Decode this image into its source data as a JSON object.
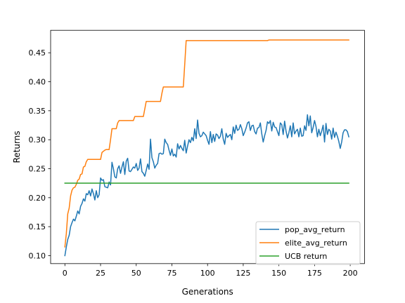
{
  "chart_data": {
    "type": "line",
    "title": "",
    "xlabel": "Generations",
    "ylabel": "Returns",
    "xlim": [
      -10,
      210
    ],
    "ylim": [
      0.08625,
      0.48875
    ],
    "xticks": [
      0,
      25,
      50,
      75,
      100,
      125,
      150,
      175,
      200
    ],
    "yticks": [
      0.1,
      0.15,
      0.2,
      0.25,
      0.3,
      0.35,
      0.4,
      0.45
    ],
    "ytick_labels": [
      "0.10",
      "0.15",
      "0.20",
      "0.25",
      "0.30",
      "0.35",
      "0.40",
      "0.45"
    ],
    "grid": false,
    "legend_position": "lower-right",
    "series": [
      {
        "name": "pop_avg_return",
        "color": "#1f77b4",
        "points": [
          [
            0,
            0.1
          ],
          [
            1,
            0.115
          ],
          [
            2,
            0.128
          ],
          [
            3,
            0.135
          ],
          [
            4,
            0.15
          ],
          [
            5,
            0.157
          ],
          [
            6,
            0.163
          ],
          [
            7,
            0.16
          ],
          [
            8,
            0.168
          ],
          [
            9,
            0.177
          ],
          [
            10,
            0.172
          ],
          [
            11,
            0.185
          ],
          [
            12,
            0.19
          ],
          [
            13,
            0.198
          ],
          [
            14,
            0.194
          ],
          [
            15,
            0.207
          ],
          [
            16,
            0.205
          ],
          [
            17,
            0.212
          ],
          [
            18,
            0.203
          ],
          [
            19,
            0.215
          ],
          [
            20,
            0.207
          ],
          [
            21,
            0.196
          ],
          [
            22,
            0.212
          ],
          [
            23,
            0.2
          ],
          [
            24,
            0.205
          ],
          [
            25,
            0.234
          ],
          [
            26,
            0.23
          ],
          [
            27,
            0.231
          ],
          [
            28,
            0.219
          ],
          [
            29,
            0.218
          ],
          [
            30,
            0.217
          ],
          [
            31,
            0.227
          ],
          [
            32,
            0.222
          ],
          [
            33,
            0.261
          ],
          [
            34,
            0.25
          ],
          [
            35,
            0.236
          ],
          [
            36,
            0.234
          ],
          [
            37,
            0.25
          ],
          [
            38,
            0.255
          ],
          [
            39,
            0.242
          ],
          [
            40,
            0.253
          ],
          [
            41,
            0.262
          ],
          [
            42,
            0.24
          ],
          [
            43,
            0.263
          ],
          [
            44,
            0.268
          ],
          [
            45,
            0.246
          ],
          [
            46,
            0.245
          ],
          [
            47,
            0.249
          ],
          [
            48,
            0.253
          ],
          [
            49,
            0.251
          ],
          [
            50,
            0.259
          ],
          [
            51,
            0.247
          ],
          [
            52,
            0.251
          ],
          [
            53,
            0.267
          ],
          [
            54,
            0.245
          ],
          [
            55,
            0.242
          ],
          [
            56,
            0.237
          ],
          [
            57,
            0.247
          ],
          [
            58,
            0.258
          ],
          [
            59,
            0.249
          ],
          [
            60,
            0.301
          ],
          [
            61,
            0.269
          ],
          [
            62,
            0.262
          ],
          [
            63,
            0.251
          ],
          [
            64,
            0.256
          ],
          [
            65,
            0.259
          ],
          [
            66,
            0.276
          ],
          [
            67,
            0.277
          ],
          [
            68,
            0.275
          ],
          [
            69,
            0.276
          ],
          [
            70,
            0.301
          ],
          [
            71,
            0.295
          ],
          [
            72,
            0.292
          ],
          [
            73,
            0.282
          ],
          [
            74,
            0.273
          ],
          [
            75,
            0.284
          ],
          [
            76,
            0.272
          ],
          [
            77,
            0.275
          ],
          [
            78,
            0.27
          ],
          [
            79,
            0.293
          ],
          [
            80,
            0.284
          ],
          [
            81,
            0.29
          ],
          [
            82,
            0.285
          ],
          [
            83,
            0.281
          ],
          [
            84,
            0.299
          ],
          [
            85,
            0.277
          ],
          [
            86,
            0.289
          ],
          [
            87,
            0.3
          ],
          [
            88,
            0.295
          ],
          [
            89,
            0.304
          ],
          [
            90,
            0.298
          ],
          [
            91,
            0.319
          ],
          [
            92,
            0.302
          ],
          [
            93,
            0.334
          ],
          [
            94,
            0.311
          ],
          [
            95,
            0.305
          ],
          [
            96,
            0.307
          ],
          [
            97,
            0.313
          ],
          [
            98,
            0.31
          ],
          [
            99,
            0.307
          ],
          [
            100,
            0.299
          ],
          [
            101,
            0.292
          ],
          [
            102,
            0.314
          ],
          [
            103,
            0.295
          ],
          [
            104,
            0.309
          ],
          [
            105,
            0.297
          ],
          [
            106,
            0.31
          ],
          [
            107,
            0.308
          ],
          [
            108,
            0.302
          ],
          [
            109,
            0.306
          ],
          [
            110,
            0.319
          ],
          [
            111,
            0.301
          ],
          [
            112,
            0.292
          ],
          [
            113,
            0.311
          ],
          [
            114,
            0.304
          ],
          [
            115,
            0.307
          ],
          [
            116,
            0.309
          ],
          [
            117,
            0.3
          ],
          [
            118,
            0.322
          ],
          [
            119,
            0.311
          ],
          [
            120,
            0.325
          ],
          [
            121,
            0.316
          ],
          [
            122,
            0.318
          ],
          [
            123,
            0.326
          ],
          [
            124,
            0.319
          ],
          [
            125,
            0.307
          ],
          [
            126,
            0.313
          ],
          [
            127,
            0.32
          ],
          [
            128,
            0.329
          ],
          [
            129,
            0.331
          ],
          [
            130,
            0.316
          ],
          [
            131,
            0.324
          ],
          [
            132,
            0.325
          ],
          [
            133,
            0.314
          ],
          [
            134,
            0.31
          ],
          [
            135,
            0.32
          ],
          [
            136,
            0.321
          ],
          [
            137,
            0.329
          ],
          [
            138,
            0.31
          ],
          [
            139,
            0.296
          ],
          [
            140,
            0.307
          ],
          [
            141,
            0.316
          ],
          [
            142,
            0.331
          ],
          [
            143,
            0.328
          ],
          [
            144,
            0.333
          ],
          [
            145,
            0.315
          ],
          [
            146,
            0.33
          ],
          [
            147,
            0.322
          ],
          [
            148,
            0.321
          ],
          [
            149,
            0.314
          ],
          [
            150,
            0.307
          ],
          [
            151,
            0.329
          ],
          [
            152,
            0.326
          ],
          [
            153,
            0.309
          ],
          [
            154,
            0.332
          ],
          [
            155,
            0.315
          ],
          [
            156,
            0.303
          ],
          [
            157,
            0.312
          ],
          [
            158,
            0.324
          ],
          [
            159,
            0.305
          ],
          [
            160,
            0.329
          ],
          [
            161,
            0.31
          ],
          [
            162,
            0.315
          ],
          [
            163,
            0.318
          ],
          [
            164,
            0.305
          ],
          [
            165,
            0.32
          ],
          [
            166,
            0.306
          ],
          [
            167,
            0.307
          ],
          [
            168,
            0.324
          ],
          [
            169,
            0.316
          ],
          [
            170,
            0.343
          ],
          [
            171,
            0.324
          ],
          [
            172,
            0.341
          ],
          [
            173,
            0.312
          ],
          [
            174,
            0.321
          ],
          [
            175,
            0.333
          ],
          [
            176,
            0.323
          ],
          [
            177,
            0.305
          ],
          [
            178,
            0.318
          ],
          [
            179,
            0.307
          ],
          [
            180,
            0.315
          ],
          [
            181,
            0.325
          ],
          [
            182,
            0.296
          ],
          [
            183,
            0.328
          ],
          [
            184,
            0.309
          ],
          [
            185,
            0.318
          ],
          [
            186,
            0.315
          ],
          [
            187,
            0.301
          ],
          [
            188,
            0.32
          ],
          [
            189,
            0.304
          ],
          [
            190,
            0.313
          ],
          [
            191,
            0.306
          ],
          [
            192,
            0.297
          ],
          [
            193,
            0.285
          ],
          [
            194,
            0.296
          ],
          [
            195,
            0.312
          ],
          [
            196,
            0.317
          ],
          [
            197,
            0.317
          ],
          [
            198,
            0.314
          ],
          [
            199,
            0.305
          ]
        ]
      },
      {
        "name": "elite_avg_return",
        "color": "#ff7f0e",
        "points": [
          [
            0,
            0.115
          ],
          [
            1,
            0.138
          ],
          [
            2,
            0.172
          ],
          [
            3,
            0.182
          ],
          [
            4,
            0.203
          ],
          [
            5,
            0.213
          ],
          [
            6,
            0.217
          ],
          [
            7,
            0.218
          ],
          [
            8,
            0.223
          ],
          [
            9,
            0.23
          ],
          [
            10,
            0.232
          ],
          [
            11,
            0.24
          ],
          [
            12,
            0.241
          ],
          [
            13,
            0.253
          ],
          [
            14,
            0.254
          ],
          [
            15,
            0.262
          ],
          [
            16,
            0.266
          ],
          [
            25,
            0.266
          ],
          [
            26,
            0.278
          ],
          [
            27,
            0.28
          ],
          [
            28,
            0.282
          ],
          [
            29,
            0.283
          ],
          [
            31,
            0.283
          ],
          [
            32,
            0.3
          ],
          [
            33,
            0.319
          ],
          [
            36,
            0.319
          ],
          [
            37,
            0.329
          ],
          [
            38,
            0.333
          ],
          [
            48,
            0.333
          ],
          [
            49,
            0.34
          ],
          [
            55,
            0.34
          ],
          [
            56,
            0.353
          ],
          [
            57,
            0.366
          ],
          [
            67,
            0.366
          ],
          [
            68,
            0.38
          ],
          [
            69,
            0.391
          ],
          [
            83,
            0.391
          ],
          [
            84,
            0.43
          ],
          [
            85,
            0.471
          ],
          [
            142,
            0.471
          ],
          [
            143,
            0.472
          ],
          [
            199,
            0.472
          ]
        ]
      },
      {
        "name": "UCB return",
        "color": "#2ca02c",
        "points": [
          [
            0,
            0.225
          ],
          [
            199,
            0.225
          ]
        ]
      }
    ]
  }
}
